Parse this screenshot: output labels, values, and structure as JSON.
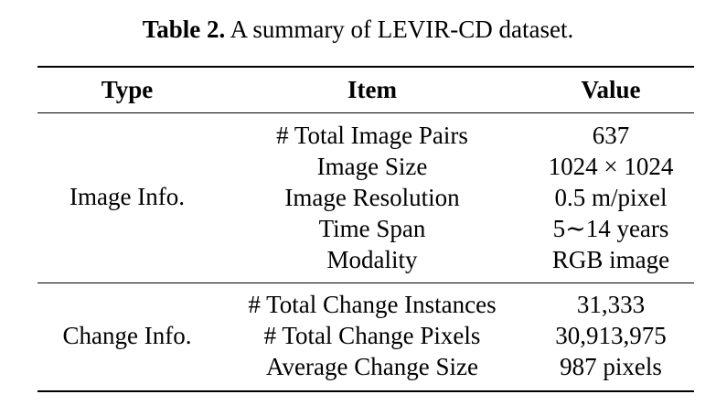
{
  "caption": {
    "label": "Table 2.",
    "text": "A summary of LEVIR-CD dataset."
  },
  "headers": {
    "type": "Type",
    "item": "Item",
    "value": "Value"
  },
  "groups": [
    {
      "type": "Image Info.",
      "rows": [
        {
          "item": "# Total Image Pairs",
          "value": "637"
        },
        {
          "item": "Image Size",
          "value": "1024 × 1024"
        },
        {
          "item": "Image Resolution",
          "value": "0.5 m/pixel"
        },
        {
          "item": "Time Span",
          "value": "5∼14 years"
        },
        {
          "item": "Modality",
          "value": "RGB image"
        }
      ]
    },
    {
      "type": "Change Info.",
      "rows": [
        {
          "item": "# Total Change Instances",
          "value": "31,333"
        },
        {
          "item": "# Total Change Pixels",
          "value": "30,913,975"
        },
        {
          "item": "Average Change Size",
          "value": "987 pixels"
        }
      ]
    }
  ]
}
